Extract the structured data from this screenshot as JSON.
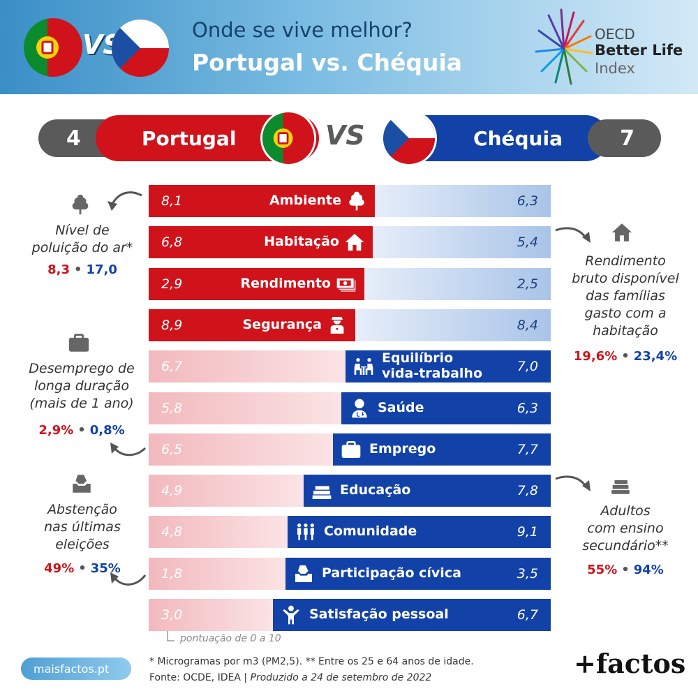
{
  "header": {
    "title_line1": "Onde se vive melhor?",
    "title_line2": "Portugal vs. Chéquia",
    "vs": "VS",
    "oecd_line1": "OECD",
    "oecd_line2": "Better Life",
    "oecd_line3": "Index"
  },
  "scoreboard": {
    "portugal_score": "4",
    "portugal_name": "Portugal",
    "vs": "VS",
    "czech_name": "Chéquia",
    "czech_score": "7"
  },
  "colors": {
    "portugal": "#d0131b",
    "portugal_light": "#f2b9bd",
    "czech": "#1242a8",
    "czech_light": "#a9c4e8"
  },
  "chart_data": {
    "type": "bar",
    "scale_note": "pontuação de 0 a 10",
    "categories": [
      "Ambiente",
      "Habitação",
      "Rendimento",
      "Segurança",
      "Equilíbrio vida-trabalho",
      "Saúde",
      "Emprego",
      "Educação",
      "Comunidade",
      "Participação cívica",
      "Satisfação pessoal"
    ],
    "category_icons": [
      "tree-icon",
      "house-icon",
      "money-icon",
      "police-icon",
      "work-life-icon",
      "doctor-icon",
      "briefcase-icon",
      "books-icon",
      "people-icon",
      "ballot-icon",
      "person-icon"
    ],
    "series": [
      {
        "name": "Portugal",
        "values": [
          8.1,
          6.8,
          2.9,
          8.9,
          6.7,
          5.8,
          6.5,
          4.9,
          4.8,
          1.8,
          3.0
        ],
        "labels": [
          "8,1",
          "6,8",
          "2,9",
          "8,9",
          "6,7",
          "5,8",
          "6,5",
          "4,9",
          "4,8",
          "1,8",
          "3,0"
        ]
      },
      {
        "name": "Chéquia",
        "values": [
          6.3,
          5.4,
          2.5,
          8.4,
          7.0,
          6.3,
          7.7,
          7.8,
          9.1,
          3.5,
          6.7
        ],
        "labels": [
          "6,3",
          "5,4",
          "2,5",
          "8,4",
          "7,0",
          "6,3",
          "7,7",
          "7,8",
          "9,1",
          "3,5",
          "6,7"
        ]
      }
    ],
    "winner": [
      "Portugal",
      "Portugal",
      "Portugal",
      "Portugal",
      "Chéquia",
      "Chéquia",
      "Chéquia",
      "Chéquia",
      "Chéquia",
      "Chéquia",
      "Chéquia"
    ]
  },
  "notes": {
    "air": {
      "label_line1": "Nível de",
      "label_line2": "poluição do ar*",
      "pt": "8,3",
      "cz": "17,0",
      "icon": "tree-icon"
    },
    "unemployment": {
      "label_line1": "Desemprego de",
      "label_line2": "longa duração",
      "label_line3": "(mais de 1 ano)",
      "pt": "2,9%",
      "cz": "0,8%",
      "icon": "briefcase-icon"
    },
    "abstention": {
      "label_line1": "Abstenção",
      "label_line2": "nas últimas",
      "label_line3": "eleições",
      "pt": "49%",
      "cz": "35%",
      "icon": "ballot-icon"
    },
    "housing": {
      "label_line1": "Rendimento",
      "label_line2": "bruto disponível",
      "label_line3": "das famílias",
      "label_line4": "gasto com a",
      "label_line5": "habitação",
      "pt": "19,6%",
      "cz": "23,4%",
      "icon": "house-icon"
    },
    "education": {
      "label_line1": "Adultos",
      "label_line2": "com ensino",
      "label_line3": "secundário**",
      "pt": "55%",
      "cz": "94%",
      "icon": "books-icon"
    },
    "separator": "•"
  },
  "footer": {
    "site": "maisfactos.pt",
    "footnote": "* Microgramas por m3 (PM2,5). ** Entre os 25 e 64 anos de idade.",
    "source": "Fonte: OCDE, IDEA | ",
    "produced": "Produzido a 24 de setembro de 2022",
    "brand": "+factos"
  }
}
